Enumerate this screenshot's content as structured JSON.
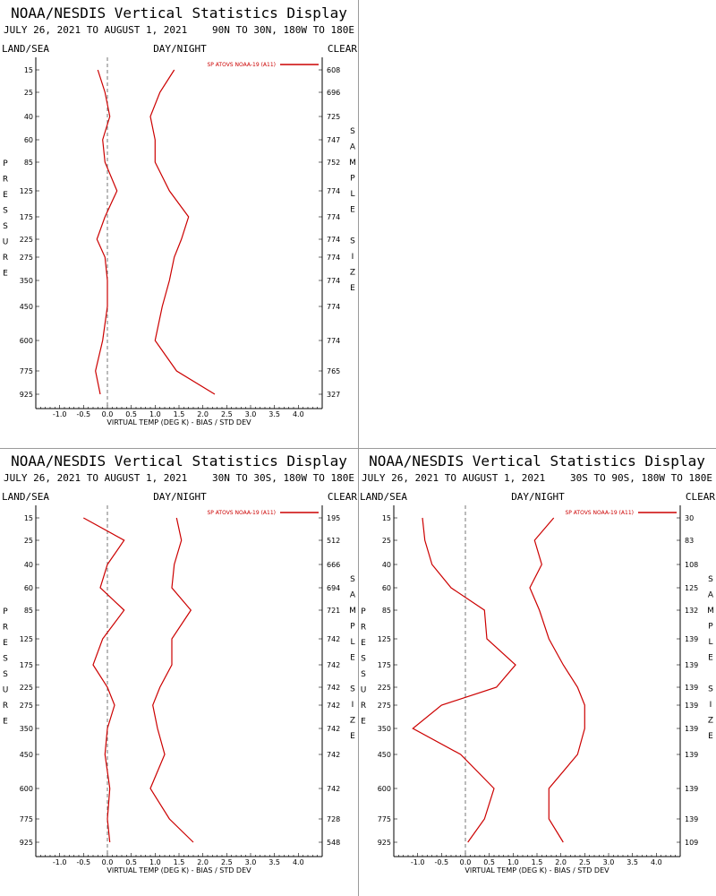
{
  "colors": {
    "series": "#cc0000",
    "axis": "#000000",
    "zero_line": "#555555"
  },
  "chart_data": [
    {
      "type": "line",
      "title": "NOAA/NESDIS Vertical Statistics Display",
      "date_range": "JULY 26, 2021 TO AUGUST 1, 2021",
      "region": "90N TO 30N, 180W TO 180E",
      "left_header": "LAND/SEA",
      "center_header": "DAY/NIGHT",
      "right_header": "CLEAR",
      "xlabel": "VIRTUAL TEMP (DEG K) - BIAS / STD DEV",
      "ylabel": "PRESSURE",
      "right_axis_label": "SAMPLE SIZE",
      "legend": "SP ATOVS NOAA-19 (A11)",
      "xlim": [
        -1.5,
        4.5
      ],
      "x_ticks": [
        "-1.0",
        "-0.5",
        "0.0",
        "0.5",
        "1.0",
        "1.5",
        "2.0",
        "2.5",
        "3.0",
        "3.5",
        "4.0"
      ],
      "pressure_levels": [
        "15",
        "25",
        "40",
        "60",
        "85",
        "125",
        "175",
        "225",
        "275",
        "350",
        "450",
        "600",
        "775",
        "925"
      ],
      "sample_size": [
        "608",
        "696",
        "725",
        "747",
        "752",
        "774",
        "774",
        "774",
        "774",
        "774",
        "774",
        "774",
        "765",
        "327"
      ],
      "bias": [
        -0.2,
        -0.05,
        0.05,
        -0.1,
        -0.05,
        0.2,
        -0.05,
        -0.22,
        -0.05,
        0.0,
        0.0,
        -0.1,
        -0.25,
        -0.15
      ],
      "std_dev": [
        1.4,
        1.1,
        0.9,
        1.0,
        1.0,
        1.3,
        1.7,
        1.55,
        1.4,
        1.3,
        1.15,
        1.0,
        1.45,
        2.25
      ]
    },
    {
      "type": "line",
      "title": "NOAA/NESDIS Vertical Statistics Display",
      "date_range": "JULY 26, 2021 TO AUGUST 1, 2021",
      "region": "30N TO 30S, 180W TO 180E",
      "left_header": "LAND/SEA",
      "center_header": "DAY/NIGHT",
      "right_header": "CLEAR",
      "xlabel": "VIRTUAL TEMP (DEG K) - BIAS / STD DEV",
      "ylabel": "PRESSURE",
      "right_axis_label": "SAMPLE SIZE",
      "legend": "SP ATOVS NOAA-19 (A11)",
      "xlim": [
        -1.5,
        4.5
      ],
      "x_ticks": [
        "-1.0",
        "-0.5",
        "0.0",
        "0.5",
        "1.0",
        "1.5",
        "2.0",
        "2.5",
        "3.0",
        "3.5",
        "4.0"
      ],
      "pressure_levels": [
        "15",
        "25",
        "40",
        "60",
        "85",
        "125",
        "175",
        "225",
        "275",
        "350",
        "450",
        "600",
        "775",
        "925"
      ],
      "sample_size": [
        "195",
        "512",
        "666",
        "694",
        "721",
        "742",
        "742",
        "742",
        "742",
        "742",
        "742",
        "742",
        "728",
        "548"
      ],
      "bias": [
        -0.5,
        0.35,
        0.0,
        -0.15,
        0.35,
        -0.1,
        -0.3,
        0.0,
        0.15,
        0.0,
        -0.05,
        0.05,
        0.0,
        0.05
      ],
      "std_dev": [
        1.45,
        1.55,
        1.4,
        1.35,
        1.75,
        1.35,
        1.35,
        1.1,
        0.95,
        1.05,
        1.2,
        0.9,
        1.3,
        1.8
      ]
    },
    {
      "type": "line",
      "title": "NOAA/NESDIS Vertical Statistics Display",
      "date_range": "JULY 26, 2021 TO AUGUST 1, 2021",
      "region": "30S TO 90S, 180W TO 180E",
      "left_header": "LAND/SEA",
      "center_header": "DAY/NIGHT",
      "right_header": "CLEAR",
      "xlabel": "VIRTUAL TEMP (DEG K) - BIAS / STD DEV",
      "ylabel": "PRESSURE",
      "right_axis_label": "SAMPLE SIZE",
      "legend": "SP ATOVS NOAA-19 (A11)",
      "xlim": [
        -1.5,
        4.5
      ],
      "x_ticks": [
        "-1.0",
        "-0.5",
        "0.0",
        "0.5",
        "1.0",
        "1.5",
        "2.0",
        "2.5",
        "3.0",
        "3.5",
        "4.0"
      ],
      "pressure_levels": [
        "15",
        "25",
        "40",
        "60",
        "85",
        "125",
        "175",
        "225",
        "275",
        "350",
        "450",
        "600",
        "775",
        "925"
      ],
      "sample_size": [
        "30",
        "83",
        "108",
        "125",
        "132",
        "139",
        "139",
        "139",
        "139",
        "139",
        "139",
        "139",
        "139",
        "109"
      ],
      "bias": [
        -0.9,
        -0.85,
        -0.7,
        -0.3,
        0.4,
        0.45,
        1.05,
        0.65,
        -0.5,
        -1.1,
        -0.1,
        0.6,
        0.4,
        0.05
      ],
      "std_dev": [
        1.85,
        1.45,
        1.6,
        1.35,
        1.55,
        1.75,
        2.05,
        2.35,
        2.5,
        2.5,
        2.35,
        1.75,
        1.75,
        2.05
      ]
    }
  ]
}
